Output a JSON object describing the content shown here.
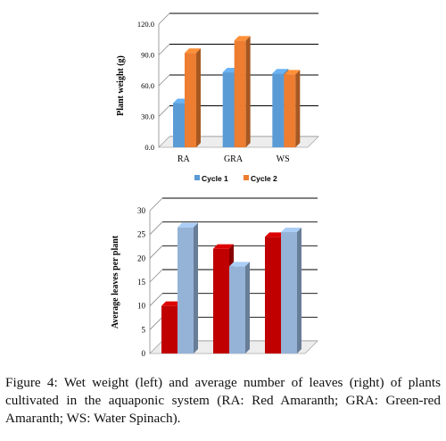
{
  "chart_data": [
    {
      "type": "bar",
      "categories": [
        "RA",
        "GRA",
        "WS"
      ],
      "series": [
        {
          "name": "Cycle 1",
          "values": [
            43,
            73,
            72
          ],
          "color": "#5b9bd5"
        },
        {
          "name": "Cycle 2",
          "values": [
            92,
            104,
            71
          ],
          "color": "#ed7d31"
        }
      ],
      "ylabel": "Plant weight (g)",
      "ylim": [
        0,
        120
      ],
      "yticks": [
        "0.0",
        "30.0",
        "60.0",
        "90.0",
        "120.0"
      ],
      "grid": true,
      "legend": "bottom",
      "style": "3d-bars"
    },
    {
      "type": "bar",
      "categories": [
        "",
        "",
        ""
      ],
      "series": [
        {
          "values": [
            10,
            22,
            24.5
          ],
          "color": "#c00000"
        },
        {
          "values": [
            26.5,
            18.3,
            25.5
          ],
          "color": "#95b3d7"
        }
      ],
      "ylabel": "Average leaves per plant",
      "ylim": [
        0,
        30
      ],
      "yticks": [
        "0",
        "5",
        "10",
        "15",
        "20",
        "25",
        "30"
      ],
      "grid": true,
      "style": "3d-bars"
    }
  ],
  "caption": {
    "label": "Figure 4:",
    "text": " Wet weight (left) and average number of leaves (right) of plants cultivated in the aquaponic system (RA: Red Amaranth; GRA: Green-red Amaranth; WS: Water Spinach)."
  }
}
